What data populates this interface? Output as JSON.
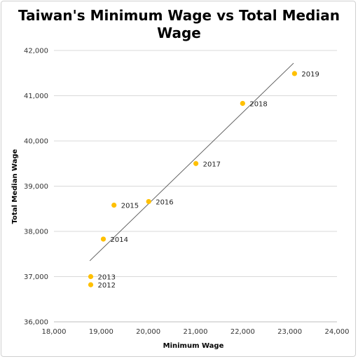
{
  "chart_data": {
    "type": "scatter",
    "title_lines": [
      "Taiwan's Minimum Wage vs Total Median",
      "Wage"
    ],
    "xlabel": "Minimum Wage",
    "ylabel": "Total Median Wage",
    "xlim": [
      18000,
      24000
    ],
    "ylim": [
      36000,
      42000
    ],
    "x_ticks": [
      18000,
      19000,
      20000,
      21000,
      22000,
      23000,
      24000
    ],
    "y_ticks": [
      36000,
      37000,
      38000,
      39000,
      40000,
      41000,
      42000
    ],
    "x_tick_labels": [
      "18,000",
      "19,000",
      "20,000",
      "21,000",
      "22,000",
      "23,000",
      "24,000"
    ],
    "y_tick_labels": [
      "36,000",
      "37,000",
      "38,000",
      "39,000",
      "40,000",
      "41,000",
      "42,000"
    ],
    "grid": "horizontal",
    "marker_color": "#FFC000",
    "trendline_color": "#555555",
    "trendline": {
      "x": [
        18760,
        23080
      ],
      "y": [
        37350,
        41720
      ]
    },
    "points": [
      {
        "label": "2012",
        "x": 18780,
        "y": 36820
      },
      {
        "label": "2013",
        "x": 18780,
        "y": 37000
      },
      {
        "label": "2014",
        "x": 19047,
        "y": 37830
      },
      {
        "label": "2015",
        "x": 19273,
        "y": 38580
      },
      {
        "label": "2016",
        "x": 20008,
        "y": 38660
      },
      {
        "label": "2017",
        "x": 21009,
        "y": 39500
      },
      {
        "label": "2018",
        "x": 22000,
        "y": 40830
      },
      {
        "label": "2019",
        "x": 23100,
        "y": 41490
      }
    ]
  }
}
